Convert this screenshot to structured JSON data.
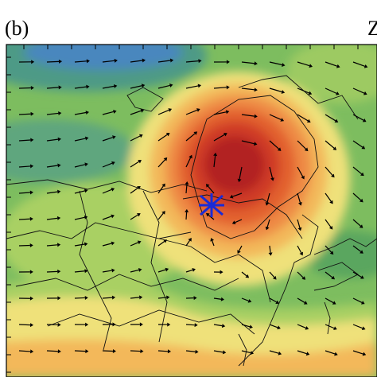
{
  "header": {
    "panel_label": "(b)",
    "corner_text": "Z"
  }
}
